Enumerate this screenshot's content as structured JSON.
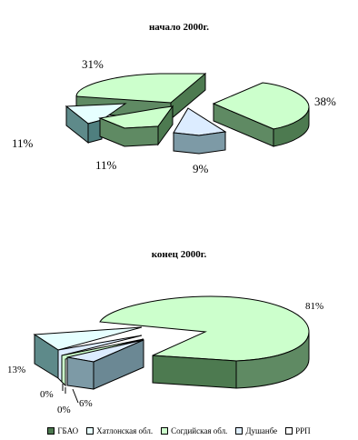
{
  "chart_data": [
    {
      "type": "pie",
      "title": "начало 2000г.",
      "categories": [
        "ГБАО",
        "Хатлонская обл.",
        "Согдийская обл.",
        "Душанбе",
        "РРП"
      ],
      "values": [
        31,
        11,
        11,
        9,
        38
      ],
      "labels": [
        "31%",
        "11%",
        "11%",
        "9%",
        "38%"
      ],
      "style": "3d-exploded",
      "legend_position": "bottom"
    },
    {
      "type": "pie",
      "title": "конец 2000г.",
      "categories": [
        "ГБАО",
        "Хатлонская обл.",
        "Согдийская обл.",
        "Душанбе",
        "РРП"
      ],
      "values": [
        81,
        13,
        0,
        0,
        6
      ],
      "labels": [
        "81%",
        "13%",
        "0%",
        "0%",
        "6%"
      ],
      "style": "3d-exploded",
      "legend_position": "bottom"
    }
  ],
  "legend": [
    {
      "label": "ГБАО",
      "color": "#4d7a50"
    },
    {
      "label": "Хатлонская обл.",
      "color": "#e6ffff"
    },
    {
      "label": "Согдийская обл.",
      "color": "#ccffcc"
    },
    {
      "label": "Душанбе",
      "color": "#dfefff"
    },
    {
      "label": "РРП",
      "color": "#ffffff"
    }
  ],
  "colors": {
    "green_top": "#ccffcc",
    "green_side": "#5f8a63",
    "cyan_top": "#e6ffff",
    "cyan_side": "#5e8a8a",
    "blue_top": "#dcecff",
    "blue_side": "#7d9aa6",
    "outline": "#000000"
  }
}
